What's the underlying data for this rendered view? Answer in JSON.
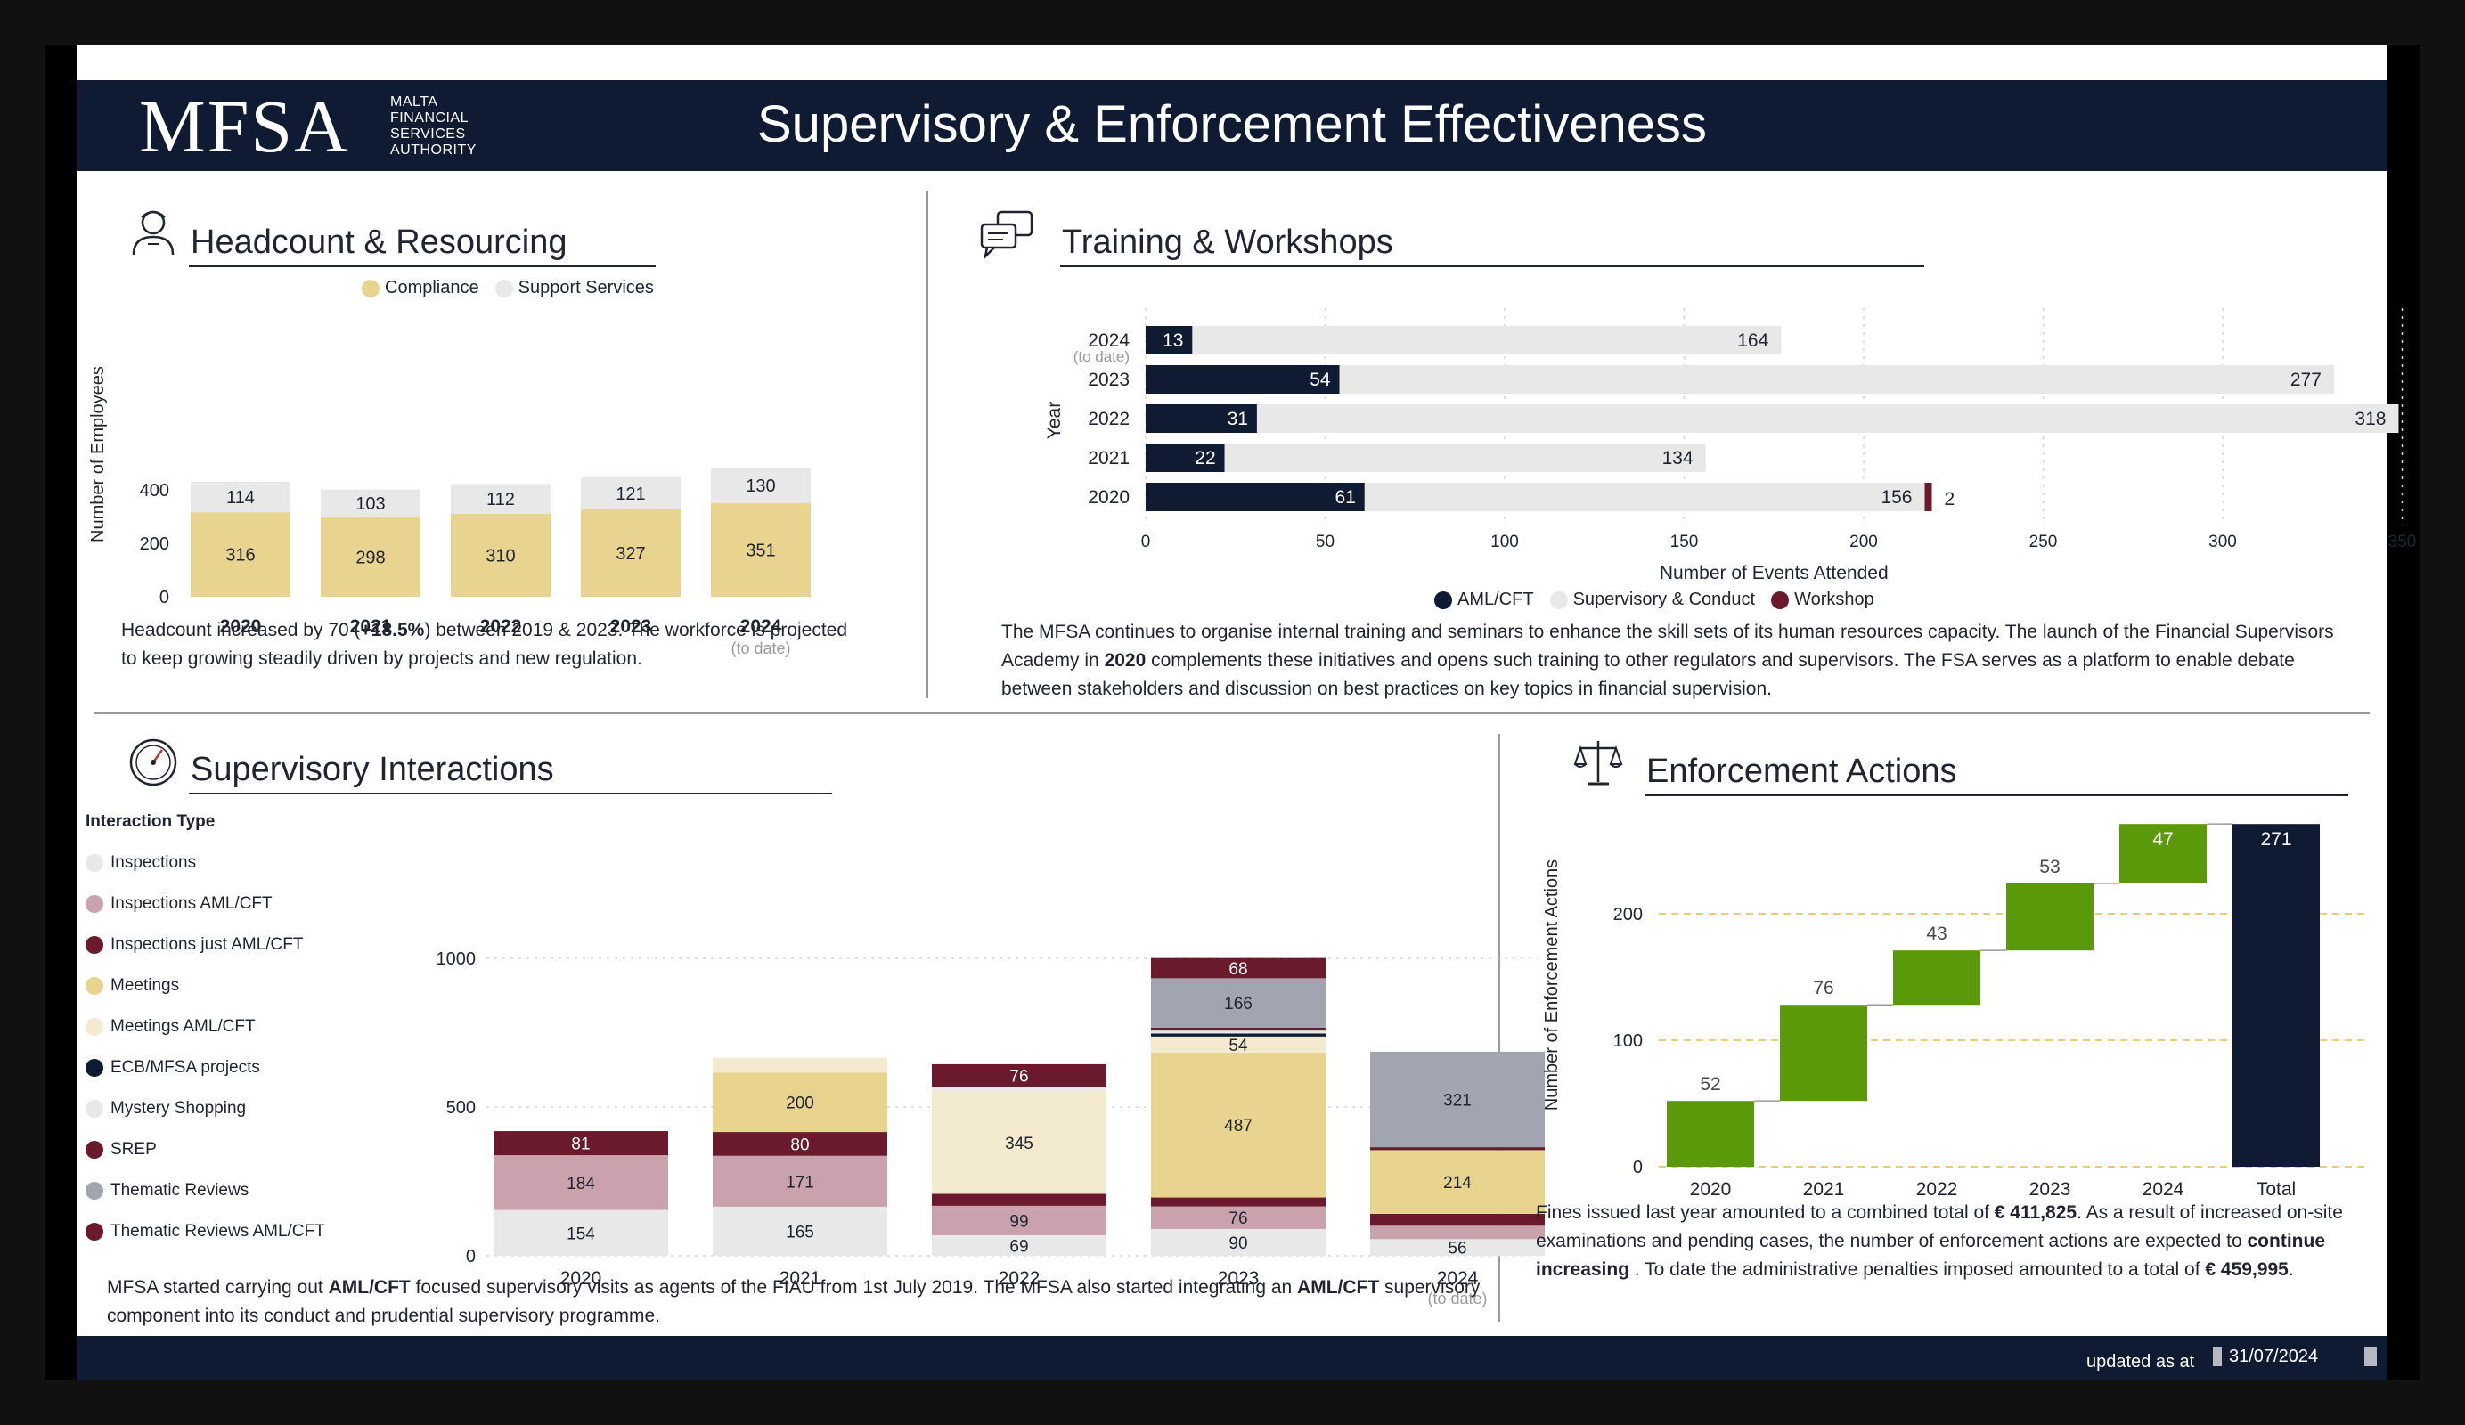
{
  "header": {
    "logo": "MFSA",
    "logo_sub": [
      "MALTA",
      "FINANCIAL",
      "SERVICES",
      "AUTHORITY"
    ],
    "title": "Supervisory & Enforcement Effectiveness"
  },
  "footer": {
    "updated_label": "updated as at",
    "date": "31/07/2024"
  },
  "headcount": {
    "title": "Headcount & Resourcing",
    "paragraph_pre": "Headcount increased by 70 (",
    "paragraph_bold": "+18.5%",
    "paragraph_post": ") between 2019 & 2023. The workforce is projected to keep growing steadily driven by projects and new regulation."
  },
  "training": {
    "title": "Training & Workshops",
    "paragraph_pre": "The MFSA continues to organise internal training and seminars to enhance the skill sets of its human resources capacity. The launch of the Financial Supervisors Academy in ",
    "paragraph_bold": "2020",
    "paragraph_post": " complements these initiatives and opens such training to other regulators and supervisors. The FSA serves as a platform to enable debate between stakeholders and discussion on best practices on key topics in financial supervision."
  },
  "interactions": {
    "title": "Supervisory Interactions",
    "legend_title": "Interaction Type",
    "paragraph_pre": "MFSA started carrying out ",
    "paragraph_bold1": "AML/CFT",
    "paragraph_mid": " focused supervisory visits as agents of the FIAU from 1st July 2019. The MFSA also started integrating an ",
    "paragraph_bold2": "AML/CFT",
    "paragraph_post": " supervisory component into its conduct and prudential supervisory programme."
  },
  "enforcement": {
    "title": "Enforcement Actions",
    "p1": "Fines issued last year amounted to a combined total of ",
    "b1": "€ 411,825",
    "p2": ". As a result of increased on-site examinations and pending cases, the number of enforcement actions are expected to ",
    "b2": "continue increasing",
    "p3": " . To date the administrative penalties imposed amounted to a total of ",
    "b3": "€ 459,995",
    "p4": "."
  },
  "chart_data": [
    {
      "id": "headcount",
      "type": "bar",
      "stacked": true,
      "categories": [
        "2020",
        "2021",
        "2022",
        "2023",
        "2024"
      ],
      "category_notes": [
        "",
        "",
        "",
        "",
        "(to date)"
      ],
      "series": [
        {
          "name": "Compliance",
          "color": "#e8d48e",
          "values": [
            316,
            298,
            310,
            327,
            351
          ]
        },
        {
          "name": "Support Services",
          "color": "#e8e8e8",
          "values": [
            114,
            103,
            112,
            121,
            130
          ]
        }
      ],
      "ylabel": "Number of Employees",
      "yticks": [
        0,
        200,
        400
      ],
      "ylim": [
        0,
        500
      ],
      "legend": "top"
    },
    {
      "id": "training",
      "type": "bar",
      "orientation": "horizontal",
      "categories": [
        "2024",
        "2023",
        "2022",
        "2021",
        "2020"
      ],
      "category_notes": [
        "(to date)",
        "",
        "",
        "",
        ""
      ],
      "series": [
        {
          "name": "AML/CFT",
          "color": "#0f1b33",
          "values": [
            13,
            54,
            31,
            22,
            61
          ]
        },
        {
          "name": "Supervisory & Conduct",
          "color": "#e8e8e8",
          "values": [
            164,
            277,
            318,
            134,
            156
          ]
        },
        {
          "name": "Workshop",
          "color": "#6b1a2e",
          "values": [
            null,
            null,
            null,
            null,
            2
          ]
        }
      ],
      "xlabel": "Number of Events Attended",
      "ylabel": "Year",
      "xticks": [
        0,
        50,
        100,
        150,
        200,
        250,
        300,
        350
      ],
      "xlim": [
        0,
        350
      ],
      "legend": "bottom"
    },
    {
      "id": "interactions",
      "type": "bar",
      "stacked": true,
      "categories": [
        "2020",
        "2021",
        "2022",
        "2023",
        "2024"
      ],
      "category_notes": [
        "",
        "",
        "",
        "",
        "(to date)"
      ],
      "series": [
        {
          "name": "Inspections",
          "color": "#e8e8e8",
          "values": [
            154,
            165,
            69,
            90,
            56
          ]
        },
        {
          "name": "Inspections  AML/CFT",
          "color": "#c9a2ad",
          "values": [
            184,
            171,
            99,
            76,
            45
          ]
        },
        {
          "name": "Inspections just AML/CFT",
          "color": "#6b1a2e",
          "values": [
            81,
            80,
            40,
            30,
            40
          ]
        },
        {
          "name": "Meetings",
          "color": "#e8d48e",
          "values": [
            0,
            200,
            0,
            487,
            214
          ]
        },
        {
          "name": "Meetings  AML/CFT",
          "color": "#f3ead0",
          "values": [
            0,
            50,
            345,
            54,
            0
          ]
        },
        {
          "name": "ECB/MFSA projects",
          "color": "#0f1b33",
          "values": [
            0,
            0,
            0,
            10,
            0
          ]
        },
        {
          "name": "Mystery Shopping",
          "color": "#e8e8e8",
          "values": [
            0,
            0,
            15,
            10,
            0
          ]
        },
        {
          "name": "SREP",
          "color": "#6b1a2e",
          "values": [
            0,
            0,
            76,
            10,
            10
          ]
        },
        {
          "name": "Thematic Reviews",
          "color": "#a0a5b0",
          "values": [
            0,
            0,
            0,
            166,
            321
          ]
        },
        {
          "name": "Thematic Reviews   AML/CFT",
          "color": "#6b1a2e",
          "values": [
            0,
            0,
            0,
            68,
            0
          ]
        }
      ],
      "labels": {
        "2020": {
          "Inspections": 154,
          "Inspections  AML/CFT": 184,
          "Inspections just AML/CFT": 81
        },
        "2021": {
          "Inspections": 165,
          "Inspections  AML/CFT": 171,
          "Inspections just AML/CFT": 80,
          "Meetings": 200
        },
        "2022": {
          "Inspections": 69,
          "Inspections  AML/CFT": 99,
          "Meetings  AML/CFT": 345,
          "SREP": 76
        },
        "2023": {
          "Inspections": 90,
          "Inspections  AML/CFT": 76,
          "Meetings": 487,
          "Meetings  AML/CFT": 54,
          "Thematic Reviews": 166,
          "Thematic Reviews   AML/CFT": 68
        },
        "2024": {
          "Inspections": 56,
          "Meetings": 214,
          "Thematic Reviews": 321
        }
      },
      "yticks": [
        0,
        500,
        1000
      ],
      "ylim": [
        0,
        1100
      ],
      "legend": "left"
    },
    {
      "id": "enforcement",
      "type": "waterfall",
      "categories": [
        "2020",
        "2021",
        "2022",
        "2023",
        "2024",
        "Total"
      ],
      "values": [
        52,
        76,
        43,
        53,
        47,
        271
      ],
      "increase_color": "#5a9a0a",
      "total_color": "#0f1b33",
      "ylabel": "Number of Enforcement Actions",
      "yticks": [
        0,
        100,
        200
      ],
      "ylim": [
        0,
        265
      ],
      "grid": "dashed"
    }
  ]
}
